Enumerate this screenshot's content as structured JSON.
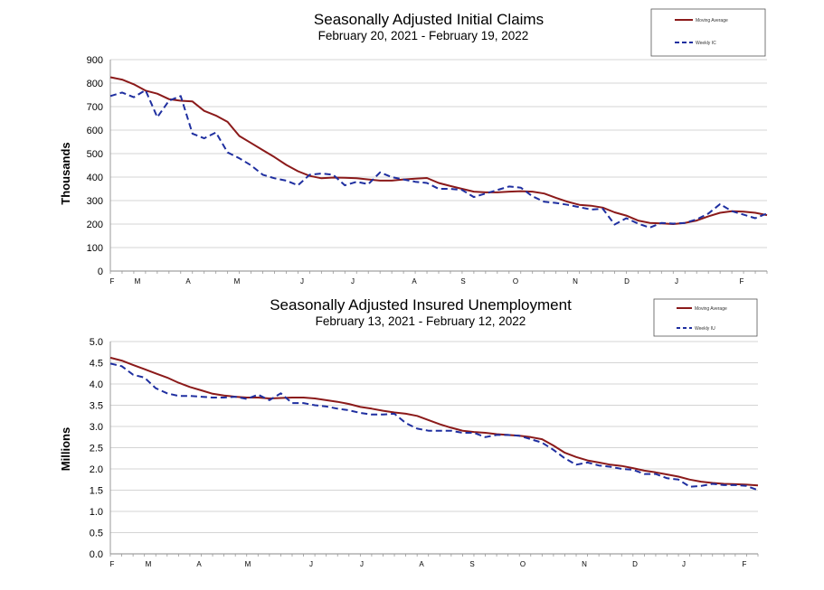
{
  "chart_data": [
    {
      "type": "line",
      "title": "Seasonally Adjusted Initial Claims",
      "subtitle": "February 20, 2021 - February 19, 2022",
      "ylabel": "Thousands",
      "ylim": [
        0,
        900
      ],
      "yticks": [
        "0",
        "100",
        "200",
        "300",
        "400",
        "500",
        "600",
        "700",
        "800",
        "900"
      ],
      "xticks": [
        "F",
        "M",
        "A",
        "M",
        "J",
        "J",
        "A",
        "S",
        "O",
        "N",
        "D",
        "J",
        "F"
      ],
      "legend_position": "top-right",
      "grid": true,
      "series": [
        {
          "name": "Moving Average",
          "color": "#8b1a1a",
          "style": "solid",
          "values": [
            825,
            815,
            795,
            768,
            755,
            732,
            725,
            722,
            682,
            662,
            635,
            575,
            545,
            515,
            485,
            452,
            425,
            405,
            395,
            398,
            397,
            395,
            390,
            385,
            385,
            390,
            393,
            396,
            375,
            362,
            350,
            338,
            335,
            335,
            338,
            340,
            338,
            330,
            312,
            295,
            282,
            278,
            270,
            250,
            236,
            215,
            205,
            203,
            200,
            205,
            215,
            233,
            248,
            255,
            253,
            248,
            238
          ]
        },
        {
          "name": "Weekly IC",
          "color": "#1f2fa0",
          "style": "dashed",
          "values": [
            745,
            760,
            740,
            770,
            655,
            725,
            745,
            585,
            565,
            590,
            505,
            480,
            450,
            410,
            395,
            385,
            365,
            410,
            415,
            410,
            365,
            380,
            370,
            420,
            400,
            390,
            380,
            375,
            350,
            350,
            345,
            315,
            330,
            345,
            360,
            355,
            318,
            295,
            290,
            282,
            272,
            262,
            265,
            198,
            225,
            202,
            185,
            205,
            202,
            205,
            220,
            245,
            285,
            255,
            240,
            225,
            245
          ]
        }
      ]
    },
    {
      "type": "line",
      "title": "Seasonally Adjusted Insured Unemployment",
      "subtitle": "February 13, 2021 - February 12, 2022",
      "ylabel": "Millions",
      "ylim": [
        0,
        5
      ],
      "yticks": [
        "0.0",
        "0.5",
        "1.0",
        "1.5",
        "2.0",
        "2.5",
        "3.0",
        "3.5",
        "4.0",
        "4.5",
        "5.0"
      ],
      "xticks": [
        "F",
        "M",
        "A",
        "M",
        "J",
        "J",
        "A",
        "S",
        "O",
        "N",
        "D",
        "J",
        "F"
      ],
      "legend_position": "top-right",
      "grid": true,
      "series": [
        {
          "name": "Moving Average",
          "color": "#8b1a1a",
          "style": "solid",
          "values": [
            4.62,
            4.55,
            4.45,
            4.35,
            4.25,
            4.15,
            4.03,
            3.93,
            3.85,
            3.77,
            3.73,
            3.7,
            3.68,
            3.68,
            3.66,
            3.67,
            3.68,
            3.68,
            3.66,
            3.62,
            3.58,
            3.53,
            3.46,
            3.42,
            3.37,
            3.33,
            3.3,
            3.25,
            3.15,
            3.05,
            2.97,
            2.9,
            2.87,
            2.85,
            2.82,
            2.8,
            2.78,
            2.75,
            2.7,
            2.55,
            2.38,
            2.28,
            2.2,
            2.15,
            2.1,
            2.07,
            2.02,
            1.96,
            1.92,
            1.87,
            1.82,
            1.75,
            1.7,
            1.67,
            1.65,
            1.64,
            1.63,
            1.61
          ]
        },
        {
          "name": "Weekly IU",
          "color": "#1f2fa0",
          "style": "dashed",
          "values": [
            4.48,
            4.42,
            4.22,
            4.15,
            3.9,
            3.78,
            3.72,
            3.72,
            3.7,
            3.68,
            3.68,
            3.7,
            3.65,
            3.75,
            3.62,
            3.78,
            3.55,
            3.55,
            3.5,
            3.47,
            3.42,
            3.38,
            3.32,
            3.28,
            3.28,
            3.3,
            3.08,
            2.95,
            2.9,
            2.9,
            2.9,
            2.85,
            2.85,
            2.75,
            2.8,
            2.8,
            2.78,
            2.7,
            2.62,
            2.45,
            2.25,
            2.1,
            2.15,
            2.08,
            2.05,
            2.0,
            1.98,
            1.88,
            1.88,
            1.78,
            1.75,
            1.58,
            1.6,
            1.65,
            1.62,
            1.62,
            1.6,
            1.5
          ]
        }
      ]
    }
  ]
}
